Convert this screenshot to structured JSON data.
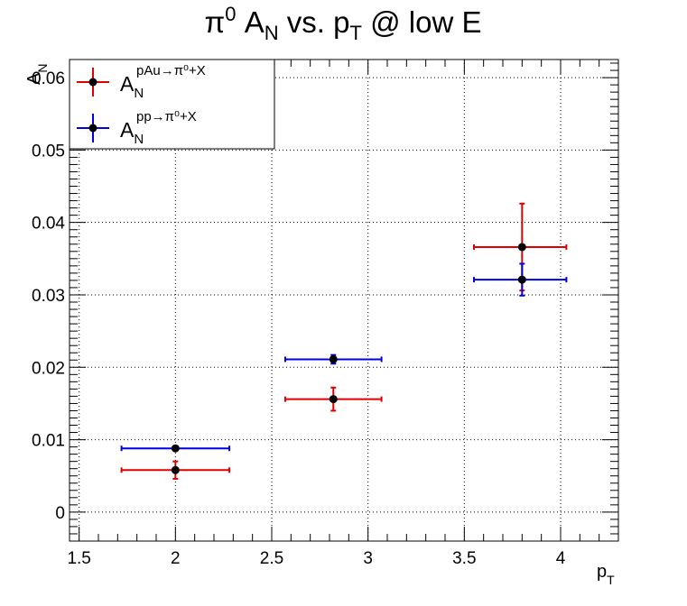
{
  "chart_data": {
    "type": "scatter",
    "title": {
      "main": "π",
      "sup": "0",
      "mid": " A",
      "sub1": "N",
      "mid2": " vs. p",
      "sub2": "T",
      "end": " @ low E"
    },
    "xlabel": {
      "main": "p",
      "sub": "T"
    },
    "ylabel": {
      "main": "A",
      "sub": "N"
    },
    "xlim": [
      1.45,
      4.3
    ],
    "ylim": [
      -0.004,
      0.0625
    ],
    "x_ticks": [
      1.5,
      2,
      2.5,
      3,
      3.5,
      4
    ],
    "x_tick_labels": [
      "1.5",
      "2",
      "2.5",
      "3",
      "3.5",
      "4"
    ],
    "y_ticks": [
      0,
      0.01,
      0.02,
      0.03,
      0.04,
      0.05,
      0.06
    ],
    "y_tick_labels": [
      "0",
      "0.01",
      "0.02",
      "0.03",
      "0.04",
      "0.05",
      "0.06"
    ],
    "grid": true,
    "legend_position": "top-left",
    "series": [
      {
        "name": "A_N^{pAu→π0+X}",
        "label": {
          "main": "A",
          "sub": "N",
          "sup": "pAu→π⁰+X"
        },
        "color": "#e00000",
        "points": [
          {
            "x": 2.0,
            "y": 0.0058,
            "xerr_low": 0.28,
            "xerr_high": 0.28,
            "yerr": 0.0012
          },
          {
            "x": 2.82,
            "y": 0.0156,
            "xerr_low": 0.25,
            "xerr_high": 0.25,
            "yerr": 0.0016
          },
          {
            "x": 3.8,
            "y": 0.0366,
            "xerr_low": 0.25,
            "xerr_high": 0.23,
            "yerr": 0.006
          }
        ]
      },
      {
        "name": "A_N^{pp→π0+X}",
        "label": {
          "main": "A",
          "sub": "N",
          "sup": "pp→π⁰+X"
        },
        "color": "#0000e0",
        "points": [
          {
            "x": 2.0,
            "y": 0.0088,
            "xerr_low": 0.28,
            "xerr_high": 0.28,
            "yerr": 0.0002
          },
          {
            "x": 2.82,
            "y": 0.0211,
            "xerr_low": 0.25,
            "xerr_high": 0.25,
            "yerr": 0.0006
          },
          {
            "x": 3.8,
            "y": 0.0321,
            "xerr_low": 0.25,
            "xerr_high": 0.23,
            "yerr": 0.0022
          }
        ]
      }
    ]
  }
}
